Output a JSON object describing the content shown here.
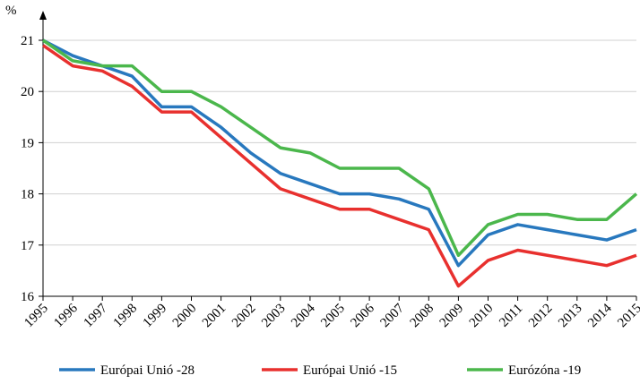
{
  "chart_data": {
    "type": "line",
    "y_label": "%",
    "categories": [
      "1995",
      "1996",
      "1997",
      "1998",
      "1999",
      "2000",
      "2001",
      "2002",
      "2003",
      "2004",
      "2005",
      "2006",
      "2007",
      "2008",
      "2009",
      "2010",
      "2011",
      "2012",
      "2013",
      "2014",
      "2015"
    ],
    "series": [
      {
        "name": "Európai Unió -28",
        "color": "#2878be",
        "values": [
          21.0,
          20.7,
          20.5,
          20.3,
          19.7,
          19.7,
          19.3,
          18.8,
          18.4,
          18.2,
          18.0,
          18.0,
          17.9,
          17.7,
          16.6,
          17.2,
          17.4,
          17.3,
          17.2,
          17.1,
          17.3
        ]
      },
      {
        "name": "Európai Unió -15",
        "color": "#e8302e",
        "values": [
          20.9,
          20.5,
          20.4,
          20.1,
          19.6,
          19.6,
          19.1,
          18.6,
          18.1,
          17.9,
          17.7,
          17.7,
          17.5,
          17.3,
          16.2,
          16.7,
          16.9,
          16.8,
          16.7,
          16.6,
          16.8
        ]
      },
      {
        "name": "Eurózóna -19",
        "color": "#4bb74c",
        "values": [
          21.0,
          20.6,
          20.5,
          20.5,
          20.0,
          20.0,
          19.7,
          19.3,
          18.9,
          18.8,
          18.5,
          18.5,
          18.5,
          18.1,
          16.8,
          17.4,
          17.6,
          17.6,
          17.5,
          17.5,
          18.0
        ]
      }
    ],
    "ylim": [
      16,
      21
    ],
    "yticks": [
      16,
      17,
      18,
      19,
      20,
      21
    ],
    "grid": true,
    "legend": "bottom"
  }
}
